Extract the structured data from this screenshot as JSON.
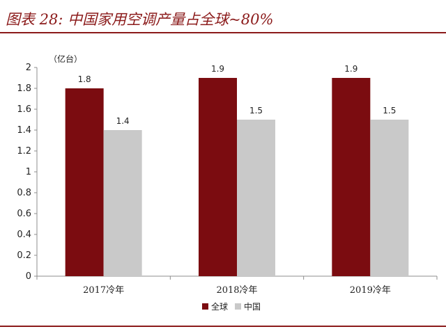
{
  "header": {
    "title": "图表 28:  中国家用空调产量占全球~80%"
  },
  "chart_data": {
    "type": "bar",
    "unit": "（亿台）",
    "categories": [
      "2017冷年",
      "2018冷年",
      "2019冷年"
    ],
    "series": [
      {
        "name": "全球",
        "values": [
          1.8,
          1.9,
          1.9
        ],
        "color": "#7b0c10"
      },
      {
        "name": "中国",
        "values": [
          1.4,
          1.5,
          1.5
        ],
        "color": "#c9c9c9"
      }
    ],
    "ylim": [
      0,
      2
    ],
    "yticks": [
      "0",
      "0.2",
      "0.4",
      "0.6",
      "0.8",
      "1",
      "1.2",
      "1.4",
      "1.6",
      "1.8",
      "2"
    ],
    "grid": false,
    "legend": "bottom"
  }
}
